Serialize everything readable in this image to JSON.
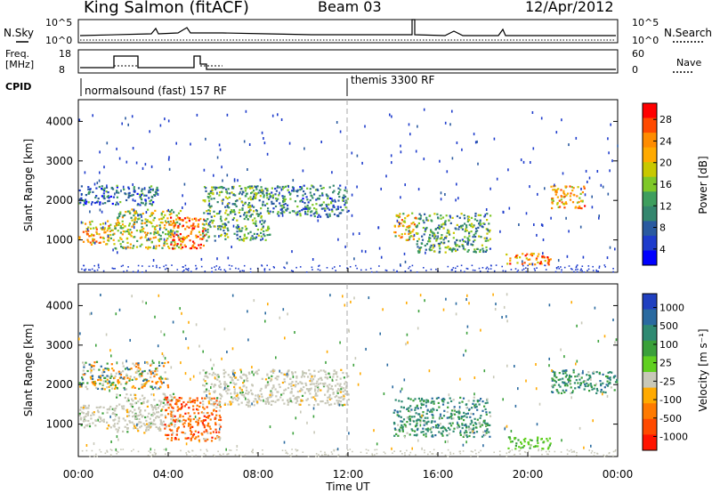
{
  "header": {
    "radar": "King Salmon (fitACF)",
    "beam": "Beam 03",
    "date": "12/Apr/2012"
  },
  "small_panels": {
    "nsky_label": "N.Sky",
    "nsearch_label": "N.Search",
    "nsky_ticks": [
      "10^5",
      "10^0"
    ],
    "nsky_right_ticks": [
      "10^5",
      "10^0"
    ],
    "freq_label_1": "Freq.",
    "freq_label_2": "[MHz]",
    "freq_ticks": [
      "18",
      "8"
    ],
    "nave_label": "Nave",
    "nave_ticks": [
      "60",
      "0"
    ],
    "cpid_label": "CPID",
    "cpid_modes": [
      "normalsound (fast) 157 RF",
      "themis 3300 RF"
    ]
  },
  "chart_data": [
    {
      "type": "heatmap",
      "title": "",
      "ylabel": "Slant Range [km]",
      "xlabel": "",
      "ylim": [
        180,
        4550
      ],
      "yticks": [
        "4000",
        "3000",
        "2000",
        "1000"
      ],
      "colorbar": {
        "label": "Power [dB]",
        "ticks": [
          "28",
          "24",
          "20",
          "16",
          "12",
          "8",
          "4"
        ],
        "colors": [
          "#ff0000",
          "#ff4a00",
          "#ff8c00",
          "#ffaa00",
          "#c8c800",
          "#7ec828",
          "#3e9e5e",
          "#34866e",
          "#2a5aa0",
          "#1e3ccc",
          "#0000ff"
        ]
      },
      "regions": [
        {
          "t": [
            0.0,
            1.6
          ],
          "r": [
            900,
            1500
          ],
          "level": 0.65
        },
        {
          "t": [
            0.0,
            3.5
          ],
          "r": [
            1900,
            2400
          ],
          "level": 0.25
        },
        {
          "t": [
            1.6,
            4.6
          ],
          "r": [
            800,
            1800
          ],
          "level": 0.55
        },
        {
          "t": [
            4.0,
            5.6
          ],
          "r": [
            800,
            1600
          ],
          "level": 0.85
        },
        {
          "t": [
            5.5,
            8.5
          ],
          "r": [
            1000,
            2400
          ],
          "level": 0.4
        },
        {
          "t": [
            8.5,
            12.0
          ],
          "r": [
            1600,
            2400
          ],
          "level": 0.3
        },
        {
          "t": [
            14.0,
            15.0
          ],
          "r": [
            1000,
            1700
          ],
          "level": 0.65
        },
        {
          "t": [
            15.0,
            18.3
          ],
          "r": [
            700,
            1700
          ],
          "level": 0.4
        },
        {
          "t": [
            19.0,
            21.0
          ],
          "r": [
            400,
            700
          ],
          "level": 0.75
        },
        {
          "t": [
            21.0,
            22.5
          ],
          "r": [
            1800,
            2400
          ],
          "level": 0.7
        }
      ]
    },
    {
      "type": "heatmap",
      "title": "",
      "ylabel": "Slant Range [km]",
      "xlabel": "Time UT",
      "ylim": [
        180,
        4550
      ],
      "yticks": [
        "4000",
        "3000",
        "2000",
        "1000"
      ],
      "xticks": [
        "00:00",
        "04:00",
        "08:00",
        "12:00",
        "16:00",
        "20:00",
        "00:00"
      ],
      "colorbar": {
        "label": "Velocity [m s⁻¹]",
        "ticks": [
          "1000",
          "500",
          "100",
          "25",
          "-25",
          "-100",
          "-500",
          "-1000"
        ],
        "colors": [
          "#2040c0",
          "#2a6aa0",
          "#2f8a72",
          "#3aa03a",
          "#60d020",
          "#c8c8b8",
          "#ffaa00",
          "#ff7a00",
          "#ff4a00",
          "#ff1400"
        ]
      },
      "regions": [
        {
          "t": [
            0.0,
            1.6
          ],
          "r": [
            900,
            1500
          ],
          "kind": "gray"
        },
        {
          "t": [
            0.0,
            4.0
          ],
          "r": [
            1900,
            2600
          ],
          "kind": "mixed"
        },
        {
          "t": [
            1.6,
            4.2
          ],
          "r": [
            800,
            1800
          ],
          "kind": "gray"
        },
        {
          "t": [
            3.8,
            6.3
          ],
          "r": [
            600,
            1700
          ],
          "kind": "orange"
        },
        {
          "t": [
            5.5,
            12.0
          ],
          "r": [
            1500,
            2400
          ],
          "kind": "gray"
        },
        {
          "t": [
            14.0,
            18.3
          ],
          "r": [
            700,
            1700
          ],
          "kind": "green"
        },
        {
          "t": [
            19.0,
            21.0
          ],
          "r": [
            400,
            700
          ],
          "kind": "lime"
        },
        {
          "t": [
            21.0,
            24.0
          ],
          "r": [
            1800,
            2400
          ],
          "kind": "green"
        }
      ]
    }
  ]
}
